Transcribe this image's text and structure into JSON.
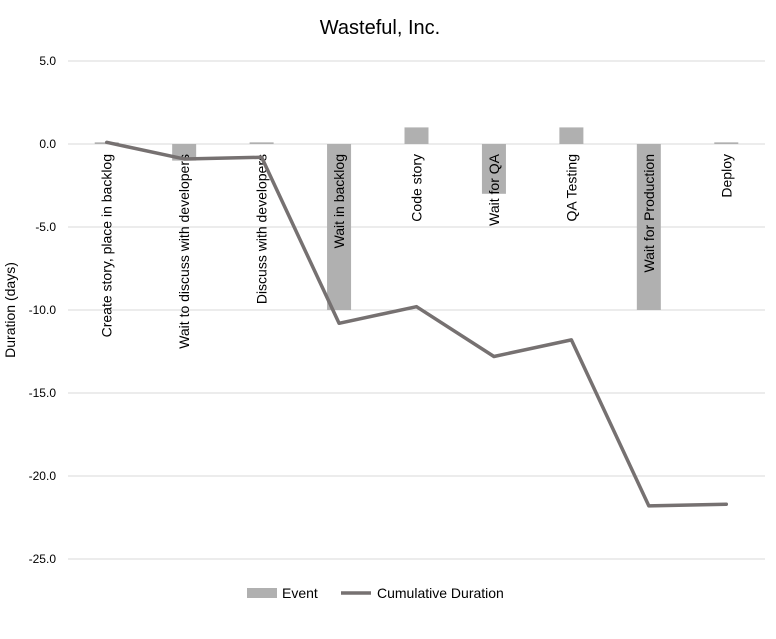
{
  "chart_data": {
    "type": "bar",
    "title": "Wasteful, Inc.",
    "ylabel": "Duration (days)",
    "xlabel": "",
    "ylim": [
      -25,
      5
    ],
    "yticks": [
      5,
      0,
      -5,
      -10,
      -15,
      -20,
      -25
    ],
    "grid": true,
    "legend_position": "bottom",
    "categories": [
      "Create story, place in backlog",
      "Wait to discuss with developers",
      "Discuss with developers",
      "Wait in backlog",
      "Code story",
      "Wait for QA",
      "QA Testing",
      "Wait for Production",
      "Deploy"
    ],
    "series": [
      {
        "name": "Event",
        "type": "bar",
        "color": "#b0b0b0",
        "values": [
          0.1,
          -1,
          0.1,
          -10,
          1,
          -3,
          1,
          -10,
          0.1
        ]
      },
      {
        "name": "Cumulative Duration",
        "type": "line",
        "color": "#767171",
        "values": [
          0.1,
          -0.9,
          -0.8,
          -10.8,
          -9.8,
          -12.8,
          -11.8,
          -21.8,
          -21.7
        ]
      }
    ]
  }
}
